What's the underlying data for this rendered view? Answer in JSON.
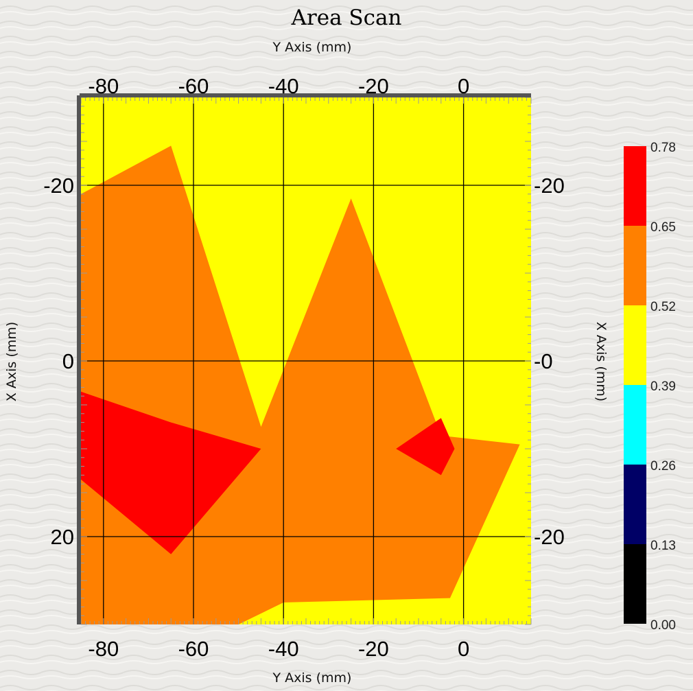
{
  "chart_data": {
    "type": "heatmap",
    "title": "Area Scan",
    "xlabel": "Y Axis (mm)",
    "ylabel": "X Axis (mm)",
    "x_ticks": [
      "-80",
      "-60",
      "-40",
      "-20",
      "0"
    ],
    "x_tick_values": [
      -80,
      -60,
      -40,
      -20,
      0
    ],
    "y_ticks": [
      "-20",
      "0",
      "20"
    ],
    "y_tick_values": [
      -20,
      0,
      20
    ],
    "y_ticks_right": [
      "-20",
      "-0",
      "-20"
    ],
    "xlim": [
      -85,
      15
    ],
    "ylim": [
      -30,
      30
    ],
    "y_axis_direction": "increasing-downward",
    "grid": true,
    "legend": {
      "placement": "right",
      "levels": [
        "0.00",
        "0.13",
        "0.26",
        "0.39",
        "0.52",
        "0.65",
        "0.78"
      ],
      "band_colors": [
        "#000000",
        "#000066",
        "#00ffff",
        "#ffff00",
        "#ff8000",
        "#ff0000"
      ]
    },
    "regions": [
      {
        "level": "0.52 - 0.65",
        "color": "#ffff00",
        "points": [
          [
            -85,
            -30
          ],
          [
            15,
            -30
          ],
          [
            15,
            30
          ],
          [
            -85,
            30
          ]
        ]
      },
      {
        "level": "0.65 - 0.78",
        "color": "#ff8000",
        "points": [
          [
            -85,
            -19
          ],
          [
            -65,
            -24.5
          ],
          [
            -45,
            7.5
          ],
          [
            -25,
            -18.5
          ],
          [
            -5,
            8.5
          ],
          [
            12.5,
            9.5
          ],
          [
            -3,
            27
          ],
          [
            -40,
            27.5
          ],
          [
            -50,
            30
          ],
          [
            -85,
            30
          ]
        ]
      },
      {
        "level": "> 0.78",
        "color": "#ff0000",
        "points": [
          [
            -85,
            3.5
          ],
          [
            -65,
            7
          ],
          [
            -45,
            10
          ],
          [
            -65,
            22
          ],
          [
            -85,
            13.5
          ]
        ]
      },
      {
        "level": "> 0.78",
        "color": "#ff0000",
        "points": [
          [
            -15,
            10
          ],
          [
            -5,
            6.5
          ],
          [
            -2,
            10
          ],
          [
            -5,
            13
          ]
        ]
      }
    ]
  }
}
